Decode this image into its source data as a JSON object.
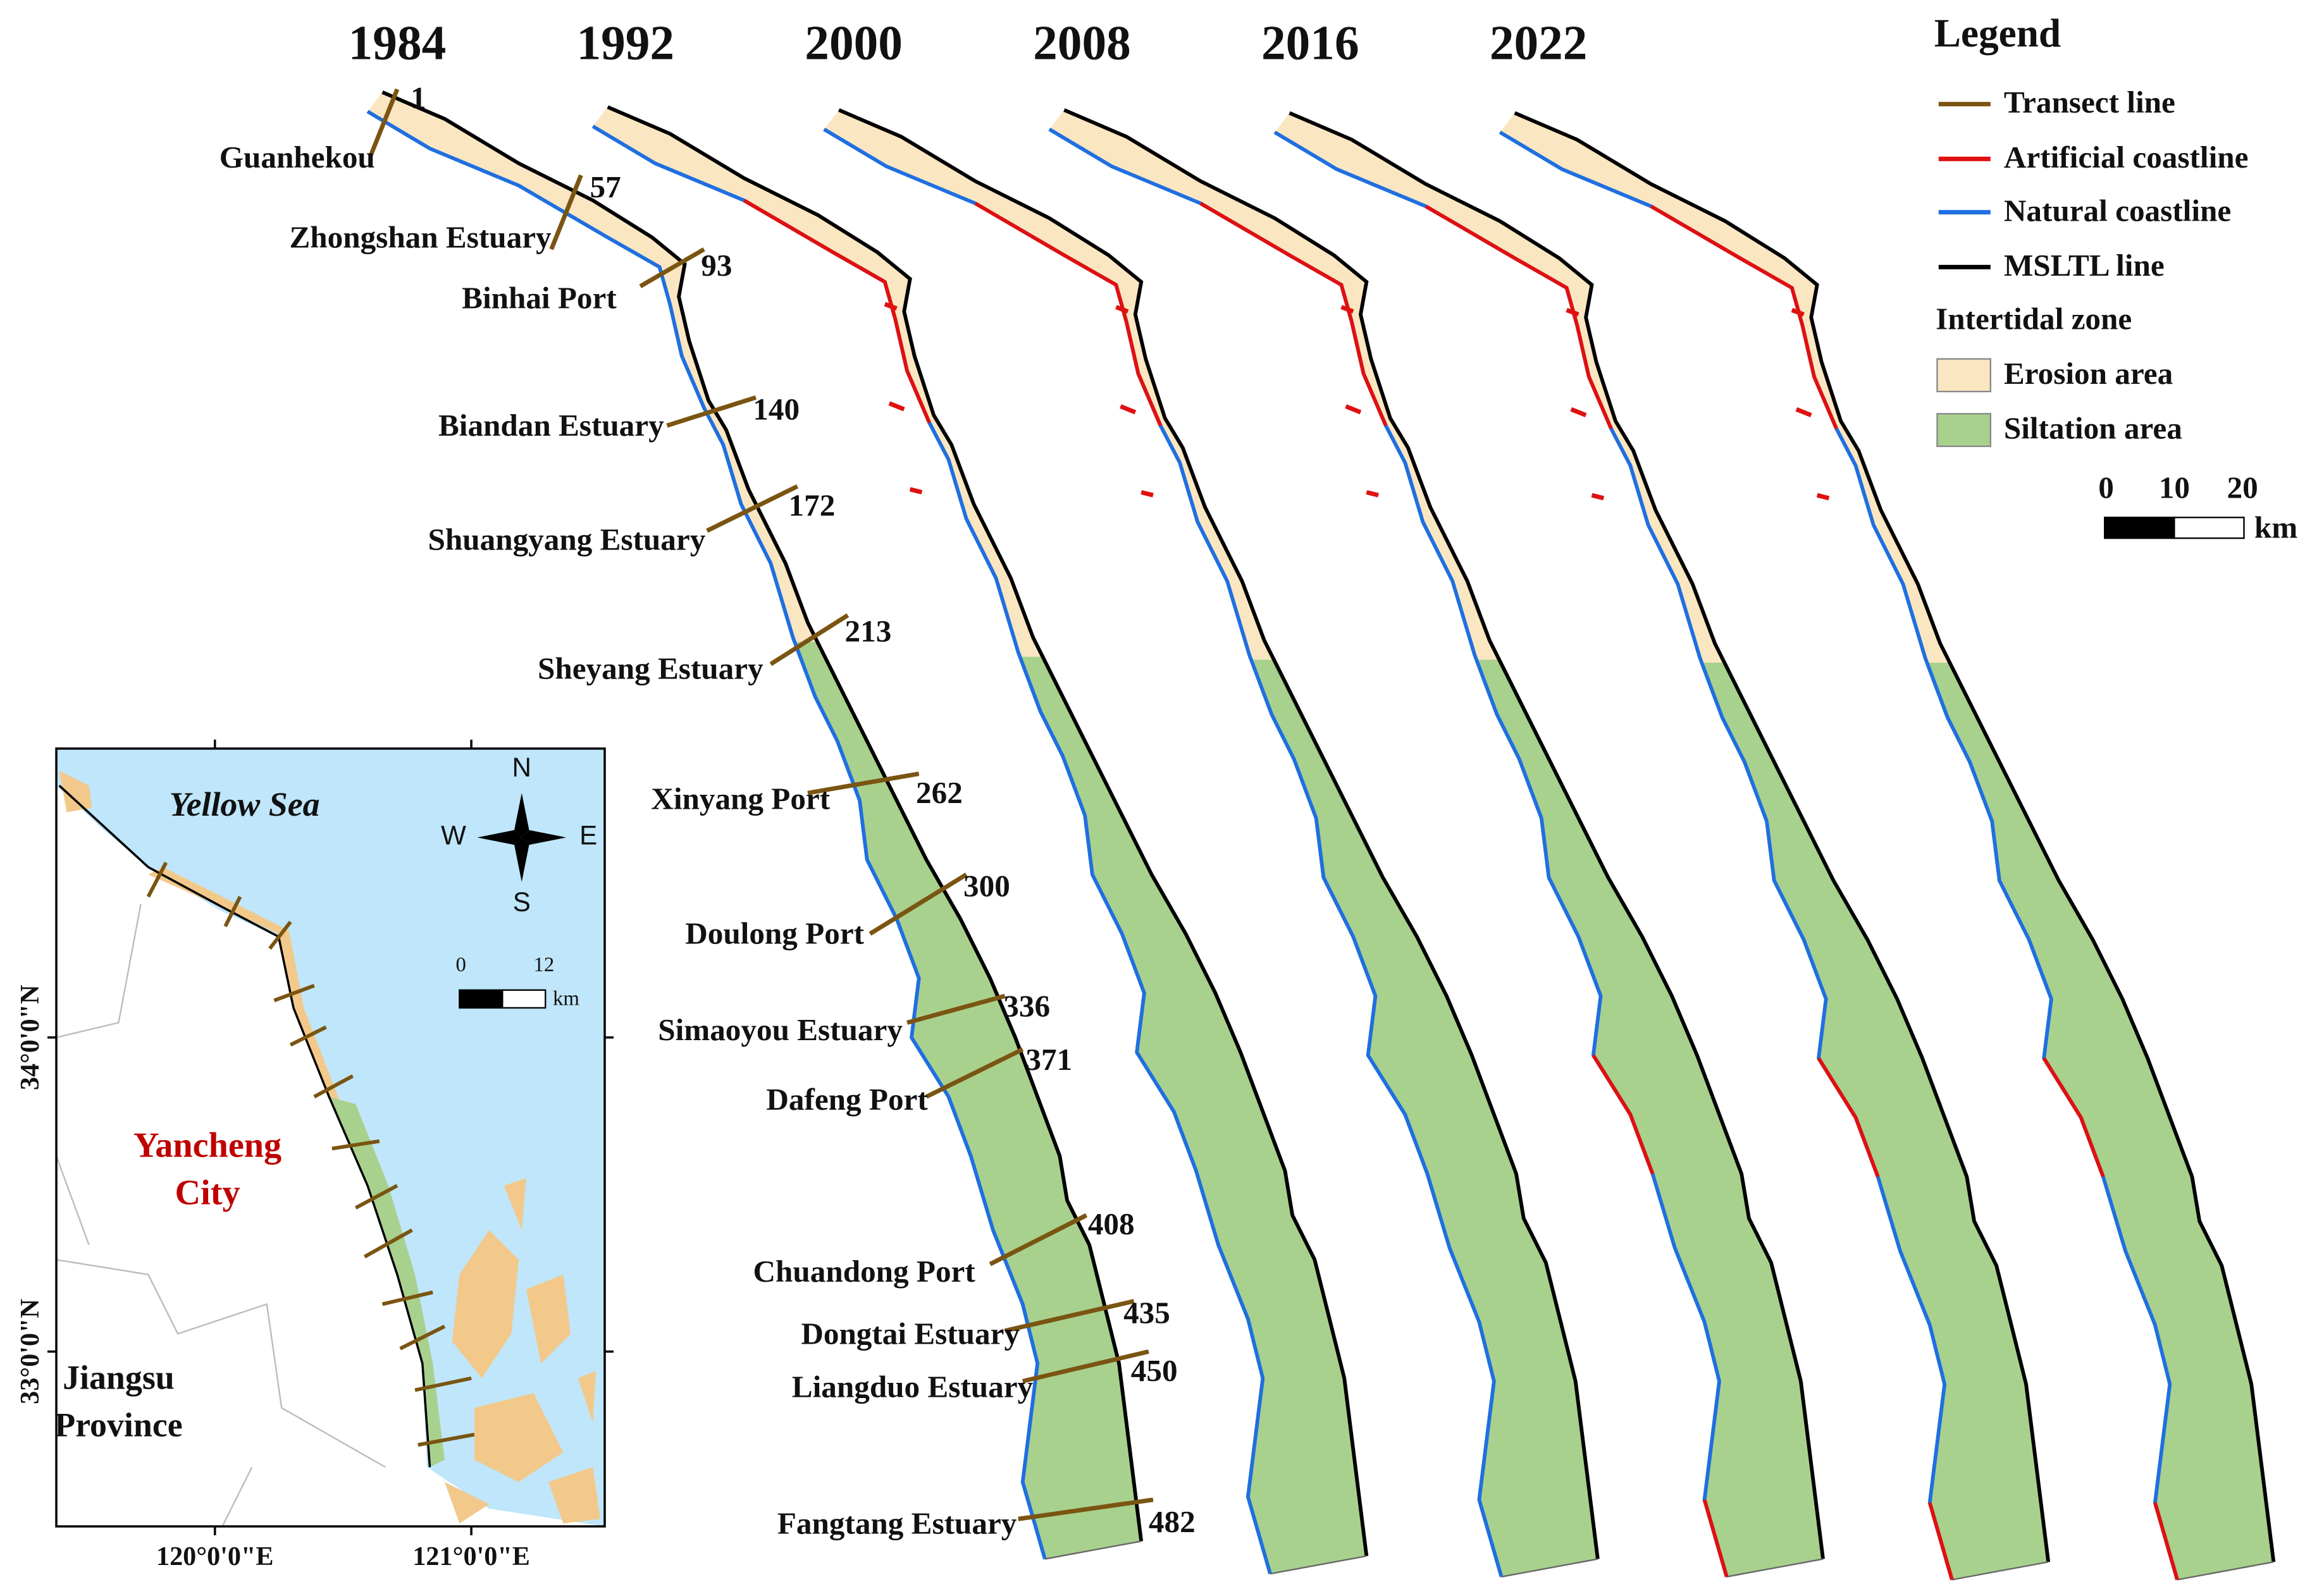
{
  "years": [
    "1984",
    "1992",
    "2000",
    "2008",
    "2016",
    "2022"
  ],
  "transects": [
    {
      "id": "1",
      "place": "Guanhekou"
    },
    {
      "id": "57",
      "place": "Zhongshan Estuary"
    },
    {
      "id": "93",
      "place": "Binhai Port"
    },
    {
      "id": "140",
      "place": "Biandan Estuary"
    },
    {
      "id": "172",
      "place": "Shuangyang Estuary"
    },
    {
      "id": "213",
      "place": "Sheyang Estuary"
    },
    {
      "id": "262",
      "place": "Xinyang Port"
    },
    {
      "id": "300",
      "place": "Doulong Port"
    },
    {
      "id": "336",
      "place": "Simaoyou Estuary"
    },
    {
      "id": "371",
      "place": "Dafeng Port"
    },
    {
      "id": "408",
      "place": "Chuandong Port"
    },
    {
      "id": "435",
      "place": "Dongtai Estuary"
    },
    {
      "id": "450",
      "place": "Liangduo Estuary"
    },
    {
      "id": "482",
      "place": "Fangtang Estuary"
    }
  ],
  "legend": {
    "title": "Legend",
    "items": [
      "Transect line",
      "Artificial coastline",
      "Natural coastline",
      "MSLTL line"
    ],
    "zone_title": "Intertidal zone",
    "zone_items": [
      "Erosion area",
      "Siltation area"
    ],
    "scale": {
      "ticks": [
        "0",
        "10",
        "20"
      ],
      "unit": "km"
    }
  },
  "inset": {
    "sea": "Yellow Sea",
    "compass": {
      "n": "N",
      "w": "W",
      "e": "E",
      "s": "S"
    },
    "scale": {
      "ticks": [
        "0",
        "12"
      ],
      "unit": "km"
    },
    "city": [
      "Yancheng",
      "City"
    ],
    "province": [
      "Jiangsu",
      "Province"
    ],
    "lat_labels": [
      "34°0'0\"N",
      "33°0'0\"N"
    ],
    "lon_labels": [
      "120°0'0\"E",
      "121°0'0\"E"
    ]
  }
}
